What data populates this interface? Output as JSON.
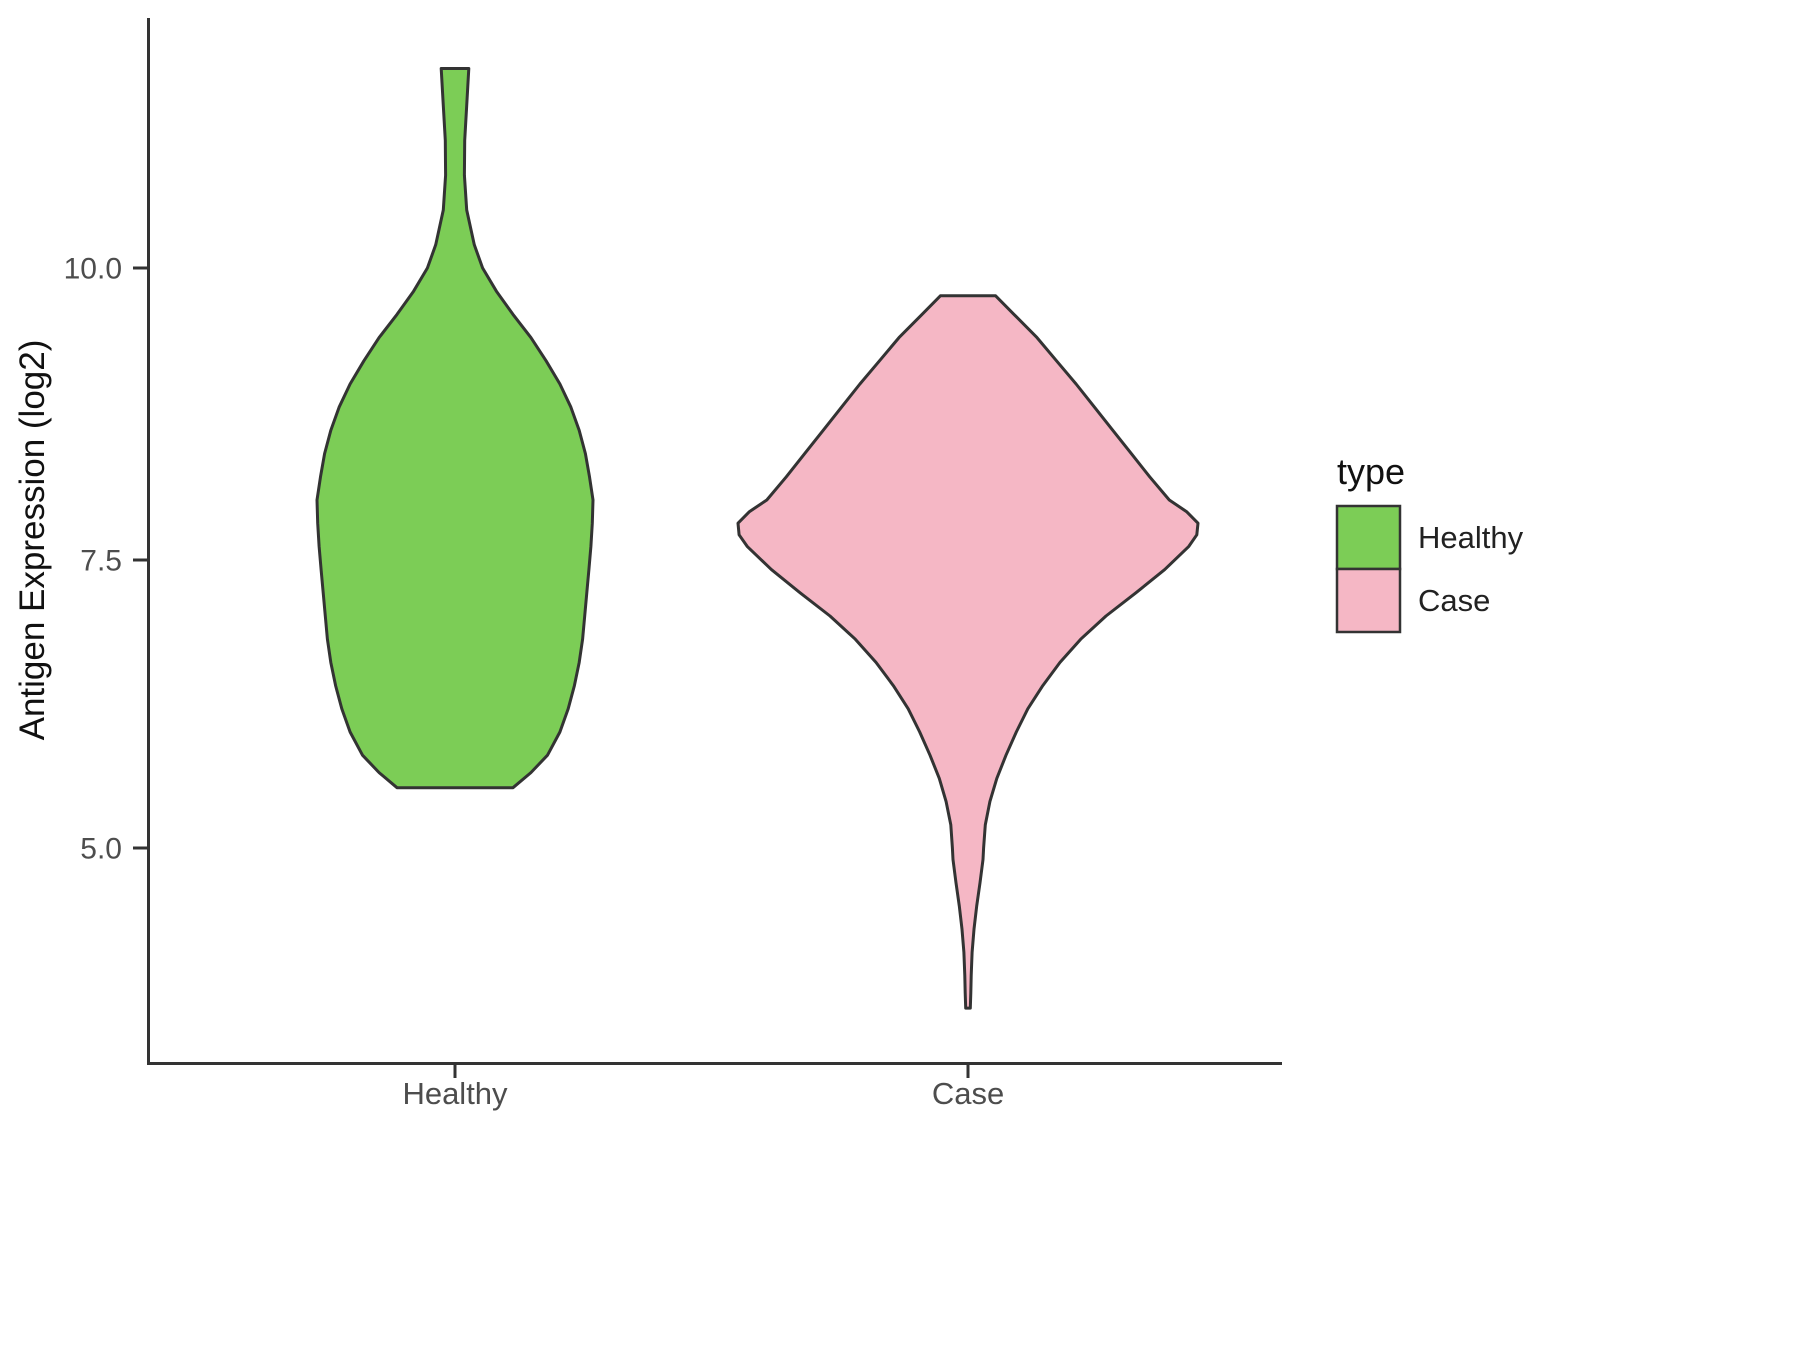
{
  "chart_data": {
    "type": "violin",
    "title": "",
    "xlabel": "",
    "ylabel": "Antigen Expression (log2)",
    "ylim": [
      3.3,
      11.9
    ],
    "grid": false,
    "y_ticks": [
      {
        "value": 10.0,
        "label": "10.0"
      },
      {
        "value": 7.5,
        "label": "7.5"
      },
      {
        "value": 5.0,
        "label": "5.0"
      }
    ],
    "categories": [
      "Healthy",
      "Case"
    ],
    "legend": {
      "title": "type",
      "position": "right",
      "entries": [
        {
          "label": "Healthy",
          "color": "#7CCD56"
        },
        {
          "label": "Case",
          "color": "#F5B7C5"
        }
      ]
    },
    "layout": {
      "outline_color": "#333333",
      "axis_color": "#333333",
      "tick_label_color": "#4d4d4d",
      "background": "#ffffff"
    },
    "series": [
      {
        "name": "Healthy",
        "color": "#7CCD56",
        "value_range": [
          5.52,
          11.72
        ],
        "peak_value": 8.0,
        "profile": [
          [
            11.72,
            0.1
          ],
          [
            11.4,
            0.085
          ],
          [
            11.1,
            0.07
          ],
          [
            10.8,
            0.068
          ],
          [
            10.5,
            0.085
          ],
          [
            10.2,
            0.14
          ],
          [
            10.0,
            0.2
          ],
          [
            9.8,
            0.3
          ],
          [
            9.6,
            0.42
          ],
          [
            9.4,
            0.55
          ],
          [
            9.2,
            0.66
          ],
          [
            9.0,
            0.76
          ],
          [
            8.8,
            0.84
          ],
          [
            8.6,
            0.9
          ],
          [
            8.4,
            0.945
          ],
          [
            8.2,
            0.975
          ],
          [
            8.0,
            1.0
          ],
          [
            7.8,
            0.995
          ],
          [
            7.6,
            0.985
          ],
          [
            7.4,
            0.97
          ],
          [
            7.2,
            0.955
          ],
          [
            7.0,
            0.94
          ],
          [
            6.8,
            0.925
          ],
          [
            6.6,
            0.9
          ],
          [
            6.4,
            0.865
          ],
          [
            6.2,
            0.82
          ],
          [
            6.0,
            0.76
          ],
          [
            5.8,
            0.67
          ],
          [
            5.65,
            0.55
          ],
          [
            5.52,
            0.42
          ]
        ]
      },
      {
        "name": "Case",
        "color": "#F5B7C5",
        "value_range": [
          3.62,
          9.76
        ],
        "peak_value": 7.8,
        "profile": [
          [
            9.76,
            0.12
          ],
          [
            9.6,
            0.2
          ],
          [
            9.4,
            0.3
          ],
          [
            9.2,
            0.385
          ],
          [
            9.0,
            0.47
          ],
          [
            8.8,
            0.55
          ],
          [
            8.6,
            0.63
          ],
          [
            8.4,
            0.71
          ],
          [
            8.2,
            0.79
          ],
          [
            8.0,
            0.875
          ],
          [
            7.9,
            0.95
          ],
          [
            7.8,
            1.0
          ],
          [
            7.7,
            0.995
          ],
          [
            7.6,
            0.96
          ],
          [
            7.4,
            0.855
          ],
          [
            7.2,
            0.73
          ],
          [
            7.0,
            0.6
          ],
          [
            6.8,
            0.49
          ],
          [
            6.6,
            0.4
          ],
          [
            6.4,
            0.325
          ],
          [
            6.2,
            0.26
          ],
          [
            6.0,
            0.21
          ],
          [
            5.8,
            0.165
          ],
          [
            5.6,
            0.125
          ],
          [
            5.4,
            0.095
          ],
          [
            5.2,
            0.075
          ],
          [
            5.0,
            0.068
          ],
          [
            4.9,
            0.065
          ],
          [
            4.7,
            0.052
          ],
          [
            4.5,
            0.038
          ],
          [
            4.3,
            0.026
          ],
          [
            4.1,
            0.018
          ],
          [
            3.9,
            0.014
          ],
          [
            3.75,
            0.012
          ],
          [
            3.62,
            0.01
          ]
        ]
      }
    ]
  }
}
